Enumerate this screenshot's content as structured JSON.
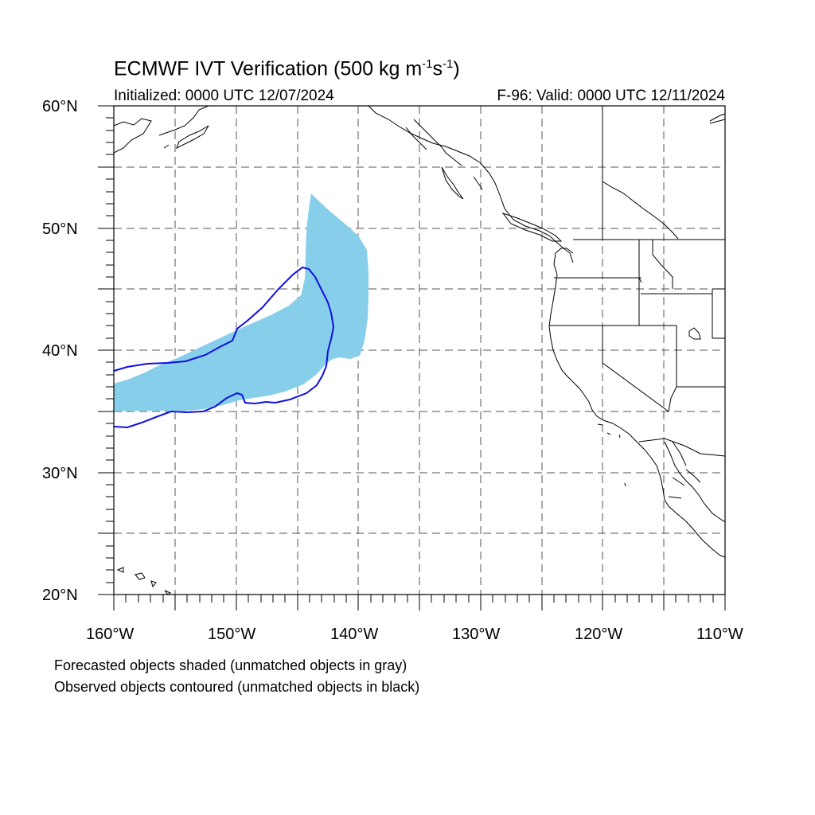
{
  "title": {
    "main": "ECMWF IVT Verification (500 kg m",
    "exp1": "-1",
    "mid": "s",
    "exp2": "-1",
    "close": ")"
  },
  "initialized": "Initialized: 0000 UTC 12/07/2024",
  "valid": "F-96: Valid: 0000 UTC 12/11/2024",
  "lat_labels": [
    "60°N",
    "50°N",
    "40°N",
    "30°N",
    "20°N"
  ],
  "lon_labels": [
    "160°W",
    "150°W",
    "140°W",
    "130°W",
    "120°W",
    "110°W"
  ],
  "notes": {
    "forecast": "Forecasted objects shaded (unmatched objects in gray)",
    "observed": "Observed objects contoured (unmatched objects in black)"
  },
  "colors": {
    "forecast_fill": "#87ceeb",
    "observed_contour": "#1010dd",
    "coastline": "#000000",
    "gridline": "#555555"
  },
  "map_extent": {
    "lon_range": [
      "160°W",
      "110°W"
    ],
    "lat_range": [
      "20°N",
      "60°N"
    ],
    "gridline_spacing_deg": 5
  }
}
